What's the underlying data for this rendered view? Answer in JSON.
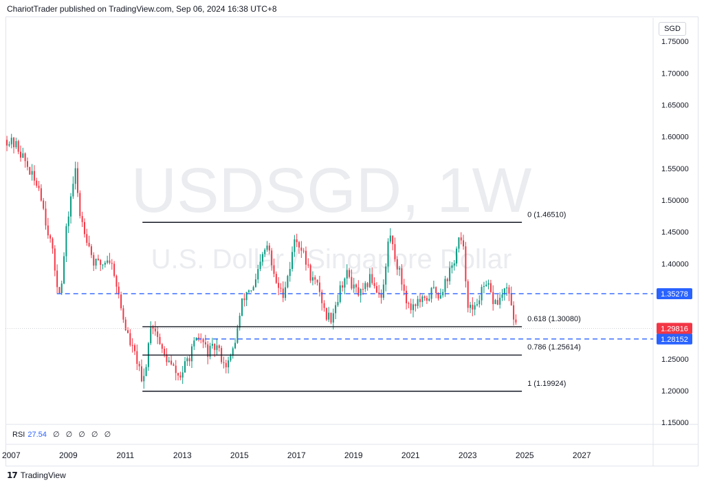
{
  "header": {
    "published": "ChariotTrader published on TradingView.com, Sep 06, 2024 16:38 UTC+8"
  },
  "watermark": {
    "symbol": "USDSGD, 1W",
    "description": "U.S. Dollar / Singapore Dollar"
  },
  "currency": "SGD",
  "indicator": {
    "name": "RSI",
    "value": "27.54",
    "extras": [
      "∅",
      "∅",
      "∅",
      "∅",
      "∅"
    ]
  },
  "footer": {
    "brand": "TradingView"
  },
  "colors": {
    "up": "#089981",
    "down": "#f23645",
    "fib": "#131722",
    "dashed": "#2962ff",
    "current": "#f23645",
    "watermark": "#d1d4dc"
  },
  "chart_data": {
    "type": "candlestick",
    "symbol": "USDSGD",
    "timeframe": "1W",
    "x_axis": {
      "labels": [
        "2007",
        "2009",
        "2011",
        "2013",
        "2015",
        "2017",
        "2019",
        "2021",
        "2023",
        "2025",
        "2027"
      ],
      "range": [
        2006.8,
        2029.5
      ]
    },
    "y_axis": {
      "labels": [
        "1.75000",
        "1.70000",
        "1.65000",
        "1.60000",
        "1.55000",
        "1.50000",
        "1.45000",
        "1.40000",
        "1.35000",
        "1.30000",
        "1.25000",
        "1.20000",
        "1.15000"
      ],
      "range": [
        1.147,
        1.787
      ]
    },
    "price_path": [
      [
        2006.85,
        1.595
      ],
      [
        2007.0,
        1.59
      ],
      [
        2007.2,
        1.585
      ],
      [
        2007.5,
        1.56
      ],
      [
        2007.8,
        1.53
      ],
      [
        2008.0,
        1.52
      ],
      [
        2008.2,
        1.47
      ],
      [
        2008.4,
        1.43
      ],
      [
        2008.6,
        1.37
      ],
      [
        2008.75,
        1.355
      ],
      [
        2008.9,
        1.44
      ],
      [
        2009.1,
        1.51
      ],
      [
        2009.25,
        1.545
      ],
      [
        2009.4,
        1.48
      ],
      [
        2009.6,
        1.45
      ],
      [
        2009.9,
        1.4
      ],
      [
        2010.2,
        1.4
      ],
      [
        2010.4,
        1.41
      ],
      [
        2010.6,
        1.39
      ],
      [
        2010.8,
        1.34
      ],
      [
        2011.0,
        1.3
      ],
      [
        2011.2,
        1.27
      ],
      [
        2011.4,
        1.25
      ],
      [
        2011.6,
        1.205
      ],
      [
        2011.75,
        1.25
      ],
      [
        2011.9,
        1.31
      ],
      [
        2012.1,
        1.29
      ],
      [
        2012.3,
        1.26
      ],
      [
        2012.6,
        1.24
      ],
      [
        2012.9,
        1.22
      ],
      [
        2013.1,
        1.24
      ],
      [
        2013.4,
        1.27
      ],
      [
        2013.6,
        1.285
      ],
      [
        2013.9,
        1.26
      ],
      [
        2014.2,
        1.27
      ],
      [
        2014.5,
        1.24
      ],
      [
        2014.7,
        1.25
      ],
      [
        2014.9,
        1.29
      ],
      [
        2015.1,
        1.34
      ],
      [
        2015.3,
        1.36
      ],
      [
        2015.5,
        1.36
      ],
      [
        2015.8,
        1.41
      ],
      [
        2016.0,
        1.43
      ],
      [
        2016.2,
        1.38
      ],
      [
        2016.5,
        1.35
      ],
      [
        2016.8,
        1.4
      ],
      [
        2016.95,
        1.445
      ],
      [
        2017.2,
        1.42
      ],
      [
        2017.5,
        1.38
      ],
      [
        2017.8,
        1.36
      ],
      [
        2018.0,
        1.32
      ],
      [
        2018.2,
        1.315
      ],
      [
        2018.4,
        1.34
      ],
      [
        2018.6,
        1.37
      ],
      [
        2018.8,
        1.385
      ],
      [
        2019.0,
        1.36
      ],
      [
        2019.3,
        1.35
      ],
      [
        2019.6,
        1.38
      ],
      [
        2019.8,
        1.36
      ],
      [
        2020.0,
        1.35
      ],
      [
        2020.15,
        1.4
      ],
      [
        2020.25,
        1.455
      ],
      [
        2020.4,
        1.42
      ],
      [
        2020.7,
        1.37
      ],
      [
        2020.95,
        1.33
      ],
      [
        2021.2,
        1.34
      ],
      [
        2021.5,
        1.34
      ],
      [
        2021.8,
        1.36
      ],
      [
        2022.0,
        1.35
      ],
      [
        2022.2,
        1.37
      ],
      [
        2022.5,
        1.4
      ],
      [
        2022.7,
        1.44
      ],
      [
        2022.85,
        1.42
      ],
      [
        2023.0,
        1.34
      ],
      [
        2023.2,
        1.32
      ],
      [
        2023.4,
        1.35
      ],
      [
        2023.7,
        1.365
      ],
      [
        2023.9,
        1.34
      ],
      [
        2024.1,
        1.34
      ],
      [
        2024.3,
        1.36
      ],
      [
        2024.5,
        1.345
      ],
      [
        2024.6,
        1.32
      ],
      [
        2024.7,
        1.298
      ]
    ],
    "fibonacci": [
      {
        "label": "0 (1.46510)",
        "price": 1.4651
      },
      {
        "label": "0.618 (1.30080)",
        "price": 1.3008
      },
      {
        "label": "0.786 (1.25614)",
        "price": 1.25614
      },
      {
        "label": "1 (1.19924)",
        "price": 1.19924
      }
    ],
    "fib_range": [
      2011.6,
      2024.9
    ],
    "horizontal_lines": [
      {
        "label": "1.35278",
        "price": 1.35278,
        "start": 2008.6,
        "style": "dashed"
      },
      {
        "label": "1.28152",
        "price": 1.28152,
        "start": 2013.5,
        "style": "dashed"
      }
    ],
    "current_price": {
      "label": "1.29816",
      "price": 1.29816
    }
  }
}
